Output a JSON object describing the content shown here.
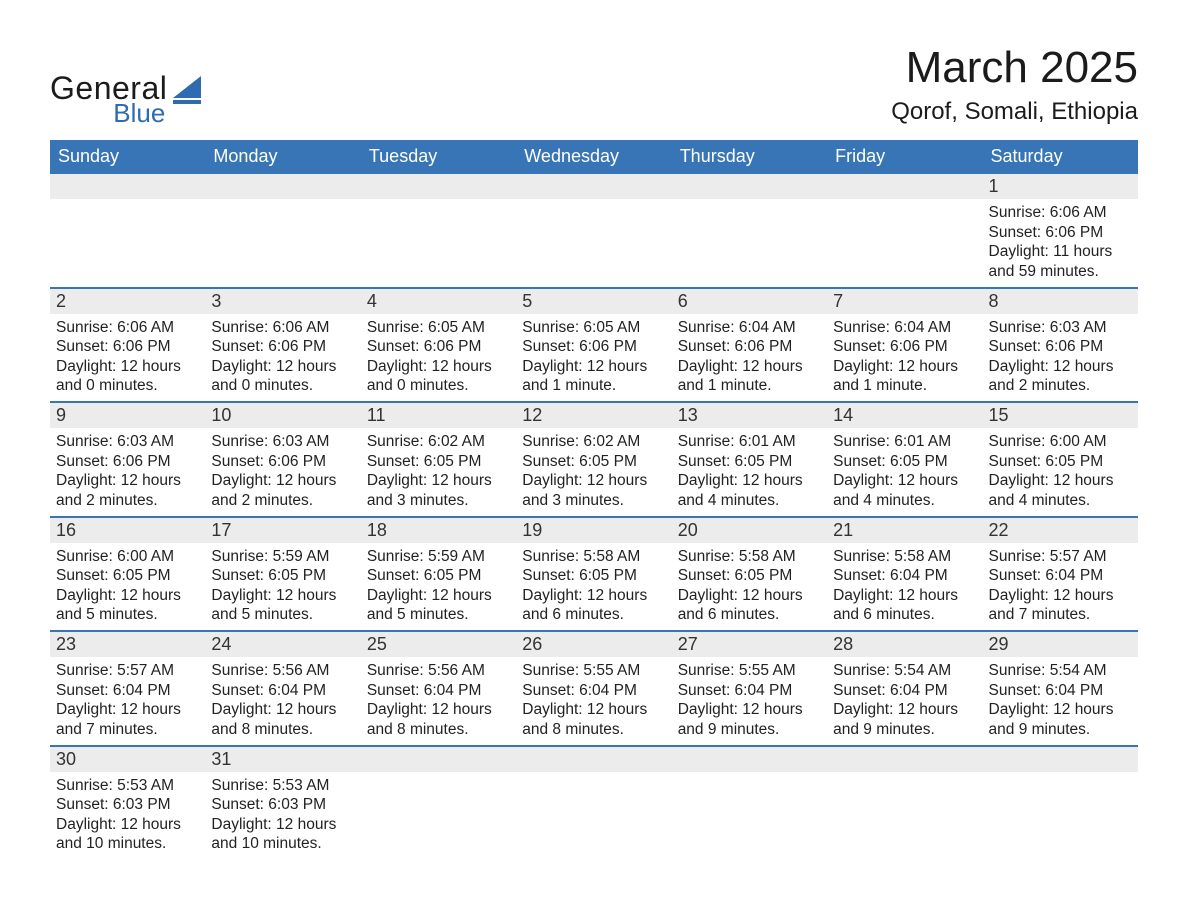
{
  "brand": {
    "name_primary": "General",
    "name_secondary": "Blue",
    "primary_color": "#1b1b1b",
    "secondary_color": "#2e6bb0"
  },
  "header": {
    "month_title": "March 2025",
    "location": "Qorof, Somali, Ethiopia"
  },
  "style": {
    "header_bg": "#3875b6",
    "header_text": "#ffffff",
    "daynum_bg": "#ececec",
    "row_separator": "#3875b6",
    "body_text": "#222222",
    "background": "#ffffff",
    "font_family": "Arial, Helvetica, sans-serif"
  },
  "weekdays": [
    "Sunday",
    "Monday",
    "Tuesday",
    "Wednesday",
    "Thursday",
    "Friday",
    "Saturday"
  ],
  "weeks": [
    [
      null,
      null,
      null,
      null,
      null,
      null,
      {
        "day": "1",
        "sunrise": "Sunrise: 6:06 AM",
        "sunset": "Sunset: 6:06 PM",
        "dl1": "Daylight: 11 hours",
        "dl2": "and 59 minutes."
      }
    ],
    [
      {
        "day": "2",
        "sunrise": "Sunrise: 6:06 AM",
        "sunset": "Sunset: 6:06 PM",
        "dl1": "Daylight: 12 hours",
        "dl2": "and 0 minutes."
      },
      {
        "day": "3",
        "sunrise": "Sunrise: 6:06 AM",
        "sunset": "Sunset: 6:06 PM",
        "dl1": "Daylight: 12 hours",
        "dl2": "and 0 minutes."
      },
      {
        "day": "4",
        "sunrise": "Sunrise: 6:05 AM",
        "sunset": "Sunset: 6:06 PM",
        "dl1": "Daylight: 12 hours",
        "dl2": "and 0 minutes."
      },
      {
        "day": "5",
        "sunrise": "Sunrise: 6:05 AM",
        "sunset": "Sunset: 6:06 PM",
        "dl1": "Daylight: 12 hours",
        "dl2": "and 1 minute."
      },
      {
        "day": "6",
        "sunrise": "Sunrise: 6:04 AM",
        "sunset": "Sunset: 6:06 PM",
        "dl1": "Daylight: 12 hours",
        "dl2": "and 1 minute."
      },
      {
        "day": "7",
        "sunrise": "Sunrise: 6:04 AM",
        "sunset": "Sunset: 6:06 PM",
        "dl1": "Daylight: 12 hours",
        "dl2": "and 1 minute."
      },
      {
        "day": "8",
        "sunrise": "Sunrise: 6:03 AM",
        "sunset": "Sunset: 6:06 PM",
        "dl1": "Daylight: 12 hours",
        "dl2": "and 2 minutes."
      }
    ],
    [
      {
        "day": "9",
        "sunrise": "Sunrise: 6:03 AM",
        "sunset": "Sunset: 6:06 PM",
        "dl1": "Daylight: 12 hours",
        "dl2": "and 2 minutes."
      },
      {
        "day": "10",
        "sunrise": "Sunrise: 6:03 AM",
        "sunset": "Sunset: 6:06 PM",
        "dl1": "Daylight: 12 hours",
        "dl2": "and 2 minutes."
      },
      {
        "day": "11",
        "sunrise": "Sunrise: 6:02 AM",
        "sunset": "Sunset: 6:05 PM",
        "dl1": "Daylight: 12 hours",
        "dl2": "and 3 minutes."
      },
      {
        "day": "12",
        "sunrise": "Sunrise: 6:02 AM",
        "sunset": "Sunset: 6:05 PM",
        "dl1": "Daylight: 12 hours",
        "dl2": "and 3 minutes."
      },
      {
        "day": "13",
        "sunrise": "Sunrise: 6:01 AM",
        "sunset": "Sunset: 6:05 PM",
        "dl1": "Daylight: 12 hours",
        "dl2": "and 4 minutes."
      },
      {
        "day": "14",
        "sunrise": "Sunrise: 6:01 AM",
        "sunset": "Sunset: 6:05 PM",
        "dl1": "Daylight: 12 hours",
        "dl2": "and 4 minutes."
      },
      {
        "day": "15",
        "sunrise": "Sunrise: 6:00 AM",
        "sunset": "Sunset: 6:05 PM",
        "dl1": "Daylight: 12 hours",
        "dl2": "and 4 minutes."
      }
    ],
    [
      {
        "day": "16",
        "sunrise": "Sunrise: 6:00 AM",
        "sunset": "Sunset: 6:05 PM",
        "dl1": "Daylight: 12 hours",
        "dl2": "and 5 minutes."
      },
      {
        "day": "17",
        "sunrise": "Sunrise: 5:59 AM",
        "sunset": "Sunset: 6:05 PM",
        "dl1": "Daylight: 12 hours",
        "dl2": "and 5 minutes."
      },
      {
        "day": "18",
        "sunrise": "Sunrise: 5:59 AM",
        "sunset": "Sunset: 6:05 PM",
        "dl1": "Daylight: 12 hours",
        "dl2": "and 5 minutes."
      },
      {
        "day": "19",
        "sunrise": "Sunrise: 5:58 AM",
        "sunset": "Sunset: 6:05 PM",
        "dl1": "Daylight: 12 hours",
        "dl2": "and 6 minutes."
      },
      {
        "day": "20",
        "sunrise": "Sunrise: 5:58 AM",
        "sunset": "Sunset: 6:05 PM",
        "dl1": "Daylight: 12 hours",
        "dl2": "and 6 minutes."
      },
      {
        "day": "21",
        "sunrise": "Sunrise: 5:58 AM",
        "sunset": "Sunset: 6:04 PM",
        "dl1": "Daylight: 12 hours",
        "dl2": "and 6 minutes."
      },
      {
        "day": "22",
        "sunrise": "Sunrise: 5:57 AM",
        "sunset": "Sunset: 6:04 PM",
        "dl1": "Daylight: 12 hours",
        "dl2": "and 7 minutes."
      }
    ],
    [
      {
        "day": "23",
        "sunrise": "Sunrise: 5:57 AM",
        "sunset": "Sunset: 6:04 PM",
        "dl1": "Daylight: 12 hours",
        "dl2": "and 7 minutes."
      },
      {
        "day": "24",
        "sunrise": "Sunrise: 5:56 AM",
        "sunset": "Sunset: 6:04 PM",
        "dl1": "Daylight: 12 hours",
        "dl2": "and 8 minutes."
      },
      {
        "day": "25",
        "sunrise": "Sunrise: 5:56 AM",
        "sunset": "Sunset: 6:04 PM",
        "dl1": "Daylight: 12 hours",
        "dl2": "and 8 minutes."
      },
      {
        "day": "26",
        "sunrise": "Sunrise: 5:55 AM",
        "sunset": "Sunset: 6:04 PM",
        "dl1": "Daylight: 12 hours",
        "dl2": "and 8 minutes."
      },
      {
        "day": "27",
        "sunrise": "Sunrise: 5:55 AM",
        "sunset": "Sunset: 6:04 PM",
        "dl1": "Daylight: 12 hours",
        "dl2": "and 9 minutes."
      },
      {
        "day": "28",
        "sunrise": "Sunrise: 5:54 AM",
        "sunset": "Sunset: 6:04 PM",
        "dl1": "Daylight: 12 hours",
        "dl2": "and 9 minutes."
      },
      {
        "day": "29",
        "sunrise": "Sunrise: 5:54 AM",
        "sunset": "Sunset: 6:04 PM",
        "dl1": "Daylight: 12 hours",
        "dl2": "and 9 minutes."
      }
    ],
    [
      {
        "day": "30",
        "sunrise": "Sunrise: 5:53 AM",
        "sunset": "Sunset: 6:03 PM",
        "dl1": "Daylight: 12 hours",
        "dl2": "and 10 minutes."
      },
      {
        "day": "31",
        "sunrise": "Sunrise: 5:53 AM",
        "sunset": "Sunset: 6:03 PM",
        "dl1": "Daylight: 12 hours",
        "dl2": "and 10 minutes."
      },
      null,
      null,
      null,
      null,
      null
    ]
  ]
}
